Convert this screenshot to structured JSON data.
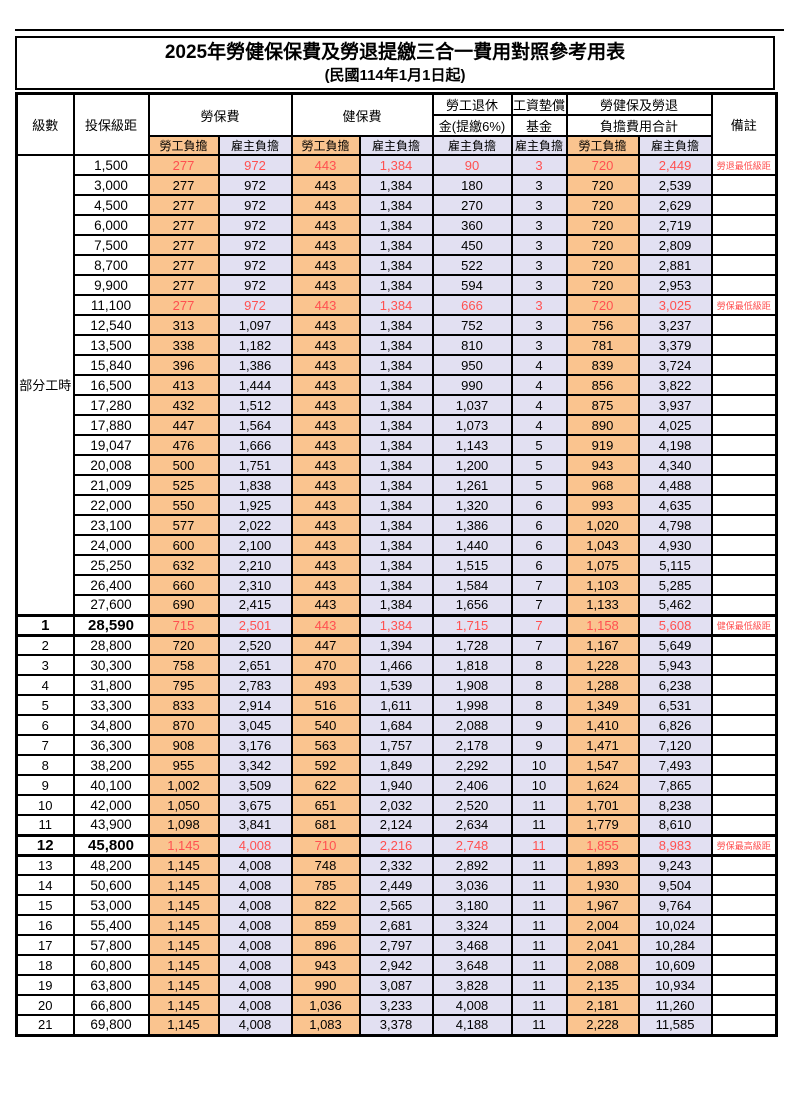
{
  "title": "2025年勞健保保費及勞退提繳三合一費用對照參考用表",
  "subtitle": "(民國114年1月1日起)",
  "header": {
    "level": "級數",
    "salary_bracket": "投保級距",
    "labor_insurance": "勞保費",
    "health_insurance": "健保費",
    "pension_line1": "勞工退休",
    "pension_line2": "金(提繳6%)",
    "wage_fund_line1": "工資墊償",
    "wage_fund_line2": "基金",
    "total_line1": "勞健保及勞退",
    "total_line2": "負擔費用合計",
    "remark": "備註",
    "employee_burden": "勞工負擔",
    "employer_burden": "雇主負擔"
  },
  "part_time_label": "部分工時",
  "part_time_rowspan": 23,
  "colors": {
    "employee_bg": "#FAC48F",
    "employer_bg": "#E2E0F2",
    "highlight_text": "#FF5050",
    "border": "#000000"
  },
  "rows": [
    {
      "level": "",
      "salary": "1,500",
      "values": [
        "277",
        "972",
        "443",
        "1,384",
        "90",
        "3",
        "720",
        "2,449"
      ],
      "remark": "勞退最低級距",
      "red": true
    },
    {
      "level": "",
      "salary": "3,000",
      "values": [
        "277",
        "972",
        "443",
        "1,384",
        "180",
        "3",
        "720",
        "2,539"
      ],
      "remark": ""
    },
    {
      "level": "",
      "salary": "4,500",
      "values": [
        "277",
        "972",
        "443",
        "1,384",
        "270",
        "3",
        "720",
        "2,629"
      ],
      "remark": ""
    },
    {
      "level": "",
      "salary": "6,000",
      "values": [
        "277",
        "972",
        "443",
        "1,384",
        "360",
        "3",
        "720",
        "2,719"
      ],
      "remark": ""
    },
    {
      "level": "",
      "salary": "7,500",
      "values": [
        "277",
        "972",
        "443",
        "1,384",
        "450",
        "3",
        "720",
        "2,809"
      ],
      "remark": ""
    },
    {
      "level": "",
      "salary": "8,700",
      "values": [
        "277",
        "972",
        "443",
        "1,384",
        "522",
        "3",
        "720",
        "2,881"
      ],
      "remark": ""
    },
    {
      "level": "",
      "salary": "9,900",
      "values": [
        "277",
        "972",
        "443",
        "1,384",
        "594",
        "3",
        "720",
        "2,953"
      ],
      "remark": ""
    },
    {
      "level": "",
      "salary": "11,100",
      "values": [
        "277",
        "972",
        "443",
        "1,384",
        "666",
        "3",
        "720",
        "3,025"
      ],
      "remark": "勞保最低級距",
      "red": true
    },
    {
      "level": "",
      "salary": "12,540",
      "values": [
        "313",
        "1,097",
        "443",
        "1,384",
        "752",
        "3",
        "756",
        "3,237"
      ],
      "remark": ""
    },
    {
      "level": "",
      "salary": "13,500",
      "values": [
        "338",
        "1,182",
        "443",
        "1,384",
        "810",
        "3",
        "781",
        "3,379"
      ],
      "remark": ""
    },
    {
      "level": "",
      "salary": "15,840",
      "values": [
        "396",
        "1,386",
        "443",
        "1,384",
        "950",
        "4",
        "839",
        "3,724"
      ],
      "remark": ""
    },
    {
      "level": "",
      "salary": "16,500",
      "values": [
        "413",
        "1,444",
        "443",
        "1,384",
        "990",
        "4",
        "856",
        "3,822"
      ],
      "remark": ""
    },
    {
      "level": "",
      "salary": "17,280",
      "values": [
        "432",
        "1,512",
        "443",
        "1,384",
        "1,037",
        "4",
        "875",
        "3,937"
      ],
      "remark": ""
    },
    {
      "level": "",
      "salary": "17,880",
      "values": [
        "447",
        "1,564",
        "443",
        "1,384",
        "1,073",
        "4",
        "890",
        "4,025"
      ],
      "remark": ""
    },
    {
      "level": "",
      "salary": "19,047",
      "values": [
        "476",
        "1,666",
        "443",
        "1,384",
        "1,143",
        "5",
        "919",
        "4,198"
      ],
      "remark": ""
    },
    {
      "level": "",
      "salary": "20,008",
      "values": [
        "500",
        "1,751",
        "443",
        "1,384",
        "1,200",
        "5",
        "943",
        "4,340"
      ],
      "remark": ""
    },
    {
      "level": "",
      "salary": "21,009",
      "values": [
        "525",
        "1,838",
        "443",
        "1,384",
        "1,261",
        "5",
        "968",
        "4,488"
      ],
      "remark": ""
    },
    {
      "level": "",
      "salary": "22,000",
      "values": [
        "550",
        "1,925",
        "443",
        "1,384",
        "1,320",
        "6",
        "993",
        "4,635"
      ],
      "remark": ""
    },
    {
      "level": "",
      "salary": "23,100",
      "values": [
        "577",
        "2,022",
        "443",
        "1,384",
        "1,386",
        "6",
        "1,020",
        "4,798"
      ],
      "remark": ""
    },
    {
      "level": "",
      "salary": "24,000",
      "values": [
        "600",
        "2,100",
        "443",
        "1,384",
        "1,440",
        "6",
        "1,043",
        "4,930"
      ],
      "remark": ""
    },
    {
      "level": "",
      "salary": "25,250",
      "values": [
        "632",
        "2,210",
        "443",
        "1,384",
        "1,515",
        "6",
        "1,075",
        "5,115"
      ],
      "remark": ""
    },
    {
      "level": "",
      "salary": "26,400",
      "values": [
        "660",
        "2,310",
        "443",
        "1,384",
        "1,584",
        "7",
        "1,103",
        "5,285"
      ],
      "remark": ""
    },
    {
      "level": "",
      "salary": "27,600",
      "values": [
        "690",
        "2,415",
        "443",
        "1,384",
        "1,656",
        "7",
        "1,133",
        "5,462"
      ],
      "remark": ""
    },
    {
      "level": "1",
      "salary": "28,590",
      "values": [
        "715",
        "2,501",
        "443",
        "1,384",
        "1,715",
        "7",
        "1,158",
        "5,608"
      ],
      "remark": "健保最低級距",
      "red": true,
      "bold": true
    },
    {
      "level": "2",
      "salary": "28,800",
      "values": [
        "720",
        "2,520",
        "447",
        "1,394",
        "1,728",
        "7",
        "1,167",
        "5,649"
      ],
      "remark": ""
    },
    {
      "level": "3",
      "salary": "30,300",
      "values": [
        "758",
        "2,651",
        "470",
        "1,466",
        "1,818",
        "8",
        "1,228",
        "5,943"
      ],
      "remark": ""
    },
    {
      "level": "4",
      "salary": "31,800",
      "values": [
        "795",
        "2,783",
        "493",
        "1,539",
        "1,908",
        "8",
        "1,288",
        "6,238"
      ],
      "remark": ""
    },
    {
      "level": "5",
      "salary": "33,300",
      "values": [
        "833",
        "2,914",
        "516",
        "1,611",
        "1,998",
        "8",
        "1,349",
        "6,531"
      ],
      "remark": ""
    },
    {
      "level": "6",
      "salary": "34,800",
      "values": [
        "870",
        "3,045",
        "540",
        "1,684",
        "2,088",
        "9",
        "1,410",
        "6,826"
      ],
      "remark": ""
    },
    {
      "level": "7",
      "salary": "36,300",
      "values": [
        "908",
        "3,176",
        "563",
        "1,757",
        "2,178",
        "9",
        "1,471",
        "7,120"
      ],
      "remark": ""
    },
    {
      "level": "8",
      "salary": "38,200",
      "values": [
        "955",
        "3,342",
        "592",
        "1,849",
        "2,292",
        "10",
        "1,547",
        "7,493"
      ],
      "remark": ""
    },
    {
      "level": "9",
      "salary": "40,100",
      "values": [
        "1,002",
        "3,509",
        "622",
        "1,940",
        "2,406",
        "10",
        "1,624",
        "7,865"
      ],
      "remark": ""
    },
    {
      "level": "10",
      "salary": "42,000",
      "values": [
        "1,050",
        "3,675",
        "651",
        "2,032",
        "2,520",
        "11",
        "1,701",
        "8,238"
      ],
      "remark": ""
    },
    {
      "level": "11",
      "salary": "43,900",
      "values": [
        "1,098",
        "3,841",
        "681",
        "2,124",
        "2,634",
        "11",
        "1,779",
        "8,610"
      ],
      "remark": ""
    },
    {
      "level": "12",
      "salary": "45,800",
      "values": [
        "1,145",
        "4,008",
        "710",
        "2,216",
        "2,748",
        "11",
        "1,855",
        "8,983"
      ],
      "remark": "勞保最高級距",
      "red": true,
      "bold": true
    },
    {
      "level": "13",
      "salary": "48,200",
      "values": [
        "1,145",
        "4,008",
        "748",
        "2,332",
        "2,892",
        "11",
        "1,893",
        "9,243"
      ],
      "remark": ""
    },
    {
      "level": "14",
      "salary": "50,600",
      "values": [
        "1,145",
        "4,008",
        "785",
        "2,449",
        "3,036",
        "11",
        "1,930",
        "9,504"
      ],
      "remark": ""
    },
    {
      "level": "15",
      "salary": "53,000",
      "values": [
        "1,145",
        "4,008",
        "822",
        "2,565",
        "3,180",
        "11",
        "1,967",
        "9,764"
      ],
      "remark": ""
    },
    {
      "level": "16",
      "salary": "55,400",
      "values": [
        "1,145",
        "4,008",
        "859",
        "2,681",
        "3,324",
        "11",
        "2,004",
        "10,024"
      ],
      "remark": ""
    },
    {
      "level": "17",
      "salary": "57,800",
      "values": [
        "1,145",
        "4,008",
        "896",
        "2,797",
        "3,468",
        "11",
        "2,041",
        "10,284"
      ],
      "remark": ""
    },
    {
      "level": "18",
      "salary": "60,800",
      "values": [
        "1,145",
        "4,008",
        "943",
        "2,942",
        "3,648",
        "11",
        "2,088",
        "10,609"
      ],
      "remark": ""
    },
    {
      "level": "19",
      "salary": "63,800",
      "values": [
        "1,145",
        "4,008",
        "990",
        "3,087",
        "3,828",
        "11",
        "2,135",
        "10,934"
      ],
      "remark": ""
    },
    {
      "level": "20",
      "salary": "66,800",
      "values": [
        "1,145",
        "4,008",
        "1,036",
        "3,233",
        "4,008",
        "11",
        "2,181",
        "11,260"
      ],
      "remark": ""
    },
    {
      "level": "21",
      "salary": "69,800",
      "values": [
        "1,145",
        "4,008",
        "1,083",
        "3,378",
        "4,188",
        "11",
        "2,228",
        "11,585"
      ],
      "remark": ""
    }
  ]
}
